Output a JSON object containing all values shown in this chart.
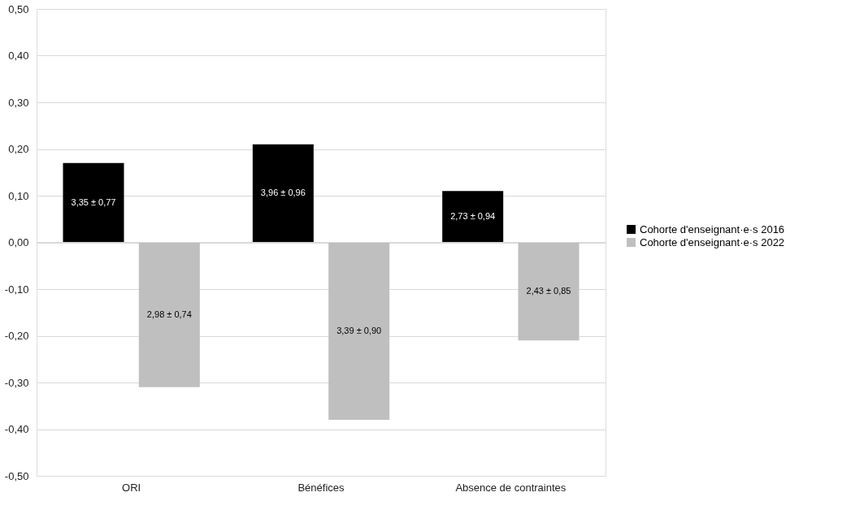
{
  "chart_data": {
    "type": "bar",
    "categories": [
      "ORI",
      "Bénéfices",
      "Absence de contraintes"
    ],
    "series": [
      {
        "name": "Cohorte d'enseignant·e·s 2016",
        "color": "#000000",
        "values": [
          0.17,
          0.21,
          0.11
        ]
      },
      {
        "name": "Cohorte d'enseignant·e·s 2022",
        "color": "#bfbfbf",
        "values": [
          -0.31,
          -0.38,
          -0.21
        ]
      }
    ],
    "annotations": [
      "3,35 ± 0,77",
      "3,96 ± 0,96",
      "2,73 ± 0,94",
      "2,98 ± 0,74",
      "3,39 ± 0,90",
      "2,43 ± 0,85"
    ],
    "ylim": [
      -0.5,
      0.5
    ],
    "yticks": [
      {
        "value": -0.5,
        "label": "-0,50"
      },
      {
        "value": -0.4,
        "label": "-0,40"
      },
      {
        "value": -0.3,
        "label": "-0,30"
      },
      {
        "value": -0.2,
        "label": "-0,20"
      },
      {
        "value": -0.1,
        "label": "-0,10"
      },
      {
        "value": 0,
        "label": "0,00"
      },
      {
        "value": 0.1,
        "label": "0,10"
      },
      {
        "value": 0.2,
        "label": "0,20"
      },
      {
        "value": 0.3,
        "label": "0,30"
      },
      {
        "value": 0.4,
        "label": "0,40"
      },
      {
        "value": 0.5,
        "label": "0,50"
      }
    ],
    "grid": "y",
    "legend": "right"
  }
}
